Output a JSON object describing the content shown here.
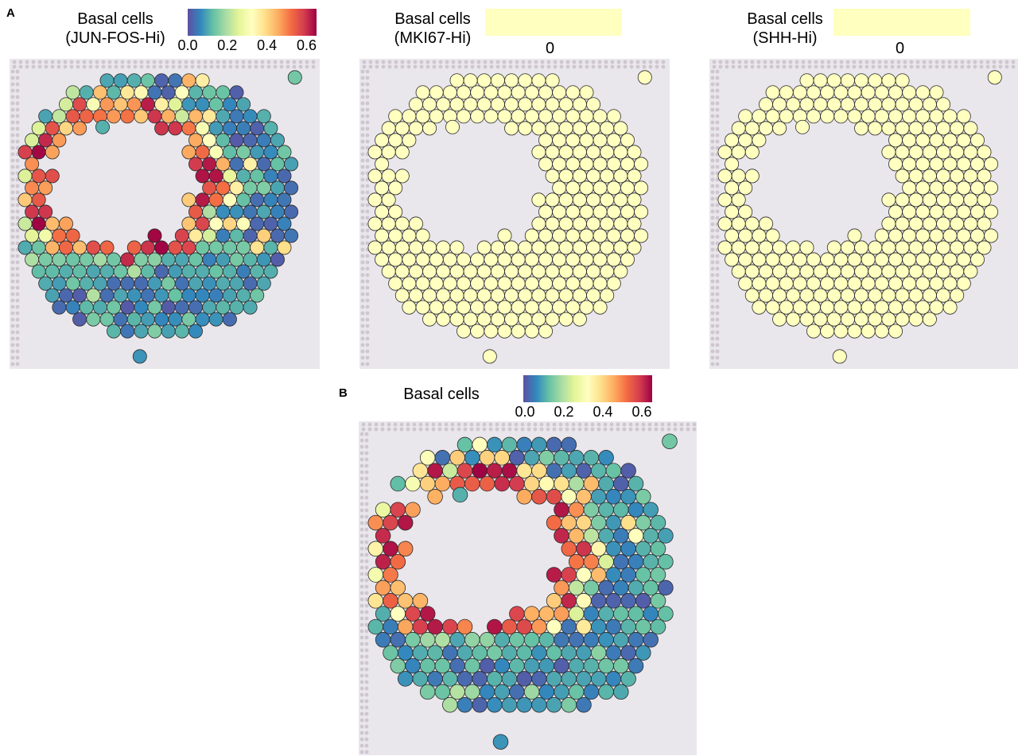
{
  "panel_a": {
    "label": "A",
    "maps": [
      {
        "title_line1": "Basal cells",
        "title_line2": "(JUN-FOS-Hi)",
        "scale_ticks": [
          "0.0",
          "0.2",
          "0.4",
          "0.6"
        ],
        "scale_type": "gradient",
        "value_range": [
          0,
          0.65
        ]
      },
      {
        "title_line1": "Basal cells",
        "title_line2": "(MKI67-Hi)",
        "scale_ticks": [
          "0"
        ],
        "scale_type": "constant",
        "value_range": [
          0,
          0
        ]
      },
      {
        "title_line1": "Basal cells",
        "title_line2": "(SHH-Hi)",
        "scale_ticks": [
          "0"
        ],
        "scale_type": "constant",
        "value_range": [
          0,
          0
        ]
      }
    ]
  },
  "panel_b": {
    "label": "B",
    "title": "Basal cells",
    "scale_ticks": [
      "0.0",
      "0.2",
      "0.4",
      "0.6"
    ],
    "value_range": [
      0,
      0.65
    ]
  },
  "colors": {
    "palette": [
      "#5e4fa2",
      "#3288bd",
      "#66c2a5",
      "#abdda4",
      "#e6f598",
      "#ffffbf",
      "#fee08b",
      "#fdae61",
      "#f46d43",
      "#d53e4f",
      "#9e0142"
    ],
    "constant_spot": "#ffffbf",
    "tissue_background": "#e9e6ec",
    "fiducial": "#cfc6cf"
  }
}
